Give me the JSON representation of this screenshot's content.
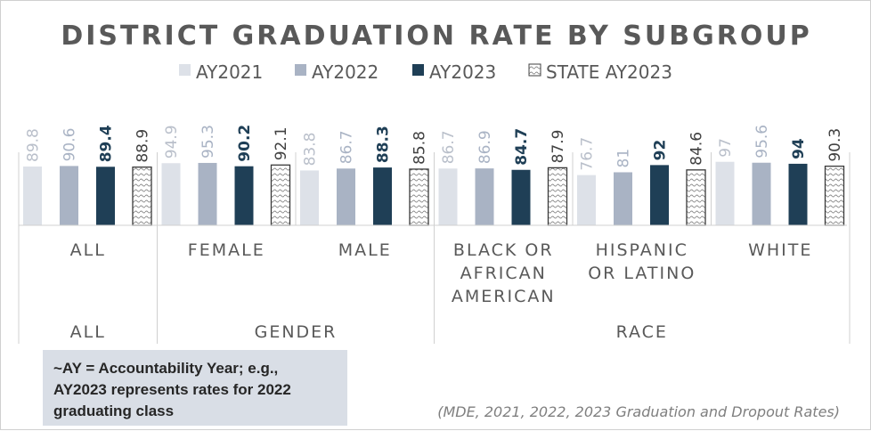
{
  "chart_data": {
    "type": "bar",
    "title": "DISTRICT GRADUATION RATE BY SUBGROUP",
    "series": [
      {
        "name": "AY2021",
        "color": "#dde1e8",
        "label_color": "#b9bfca",
        "pattern": "",
        "values": [
          89.8,
          94.9,
          83.8,
          86.7,
          76.7,
          97
        ]
      },
      {
        "name": "AY2022",
        "color": "#a9b3c4",
        "label_color": "#a9b3c4",
        "pattern": "",
        "values": [
          90.6,
          95.3,
          86.7,
          86.9,
          81,
          95.6
        ]
      },
      {
        "name": "AY2023",
        "color": "#1f3f56",
        "label_color": "#1f3f56",
        "pattern": "",
        "values": [
          89.4,
          90.2,
          88.3,
          84.7,
          92,
          94
        ]
      },
      {
        "name": "STATE AY2023",
        "color": "#ffffff",
        "label_color": "#404040",
        "pattern": "dotted",
        "values": [
          88.9,
          92.1,
          85.8,
          87.9,
          84.6,
          90.3
        ]
      }
    ],
    "categories": [
      {
        "name": "ALL",
        "lines": [
          "ALL"
        ]
      },
      {
        "name": "FEMALE",
        "lines": [
          "FEMALE"
        ]
      },
      {
        "name": "MALE",
        "lines": [
          "MALE"
        ]
      },
      {
        "name": "BLACK OR AFRICAN AMERICAN",
        "lines": [
          "BLACK OR",
          "AFRICAN",
          "AMERICAN"
        ]
      },
      {
        "name": "HISPANIC OR LATINO",
        "lines": [
          "HISPANIC",
          "OR LATINO"
        ]
      },
      {
        "name": "WHITE",
        "lines": [
          "WHITE"
        ]
      }
    ],
    "groups": [
      {
        "label": "ALL",
        "span": 1
      },
      {
        "label": "GENDER",
        "span": 2
      },
      {
        "label": "RACE",
        "span": 3
      }
    ],
    "xlabel": "",
    "ylabel": "",
    "ylim": [
      0,
      100
    ],
    "grid": false,
    "legend": "top"
  },
  "note": {
    "lines": [
      "~AY = Accountability Year; e.g.,",
      "AY2023 represents rates for 2022",
      "graduating class"
    ]
  },
  "source": "(MDE,   2021, 2022, 2023 Graduation and Dropout Rates)"
}
